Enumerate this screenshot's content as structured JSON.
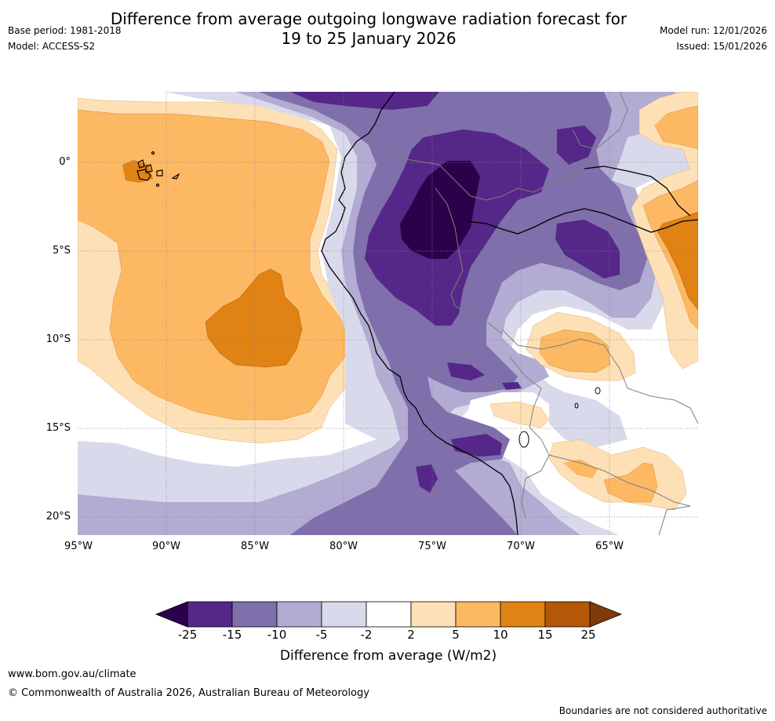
{
  "header": {
    "title_line1": "Difference from average outgoing longwave radiation forecast for",
    "title_line2": "19 to 25 January 2026",
    "base_period": "Base period: 1981-2018",
    "model": "Model: ACCESS-S2",
    "model_run": "Model run: 12/01/2026",
    "issued": "Issued: 15/01/2026"
  },
  "map": {
    "latitude_labels": [
      "0°",
      "5°S",
      "10°S",
      "15°S",
      "20°S"
    ],
    "longitude_labels": [
      "95°W",
      "90°W",
      "85°W",
      "80°W",
      "75°W",
      "70°W",
      "65°W"
    ]
  },
  "legend": {
    "ticks": [
      "-25",
      "-15",
      "-10",
      "-5",
      "-2",
      "2",
      "5",
      "10",
      "15",
      "25"
    ],
    "title": "Difference from average (W/m2)",
    "colors": {
      "lt_-25": "#2d004b",
      "-25_-15": "#542788",
      "-15_-10": "#7f6fab",
      "-10_-5": "#b2abd2",
      "-5_-2": "#d8daeb",
      "-2_2": "#ffffff",
      "2_5": "#fee0b6",
      "5_10": "#fdb863",
      "10_15": "#e08214",
      "15_25": "#b35806",
      "gt_25": "#7f3b08"
    }
  },
  "footer": {
    "website": "www.bom.gov.au/climate",
    "copyright": "© Commonwealth of Australia 2026, Australian Bureau of Meteorology",
    "disclaimer": "Boundaries are not considered authoritative"
  }
}
